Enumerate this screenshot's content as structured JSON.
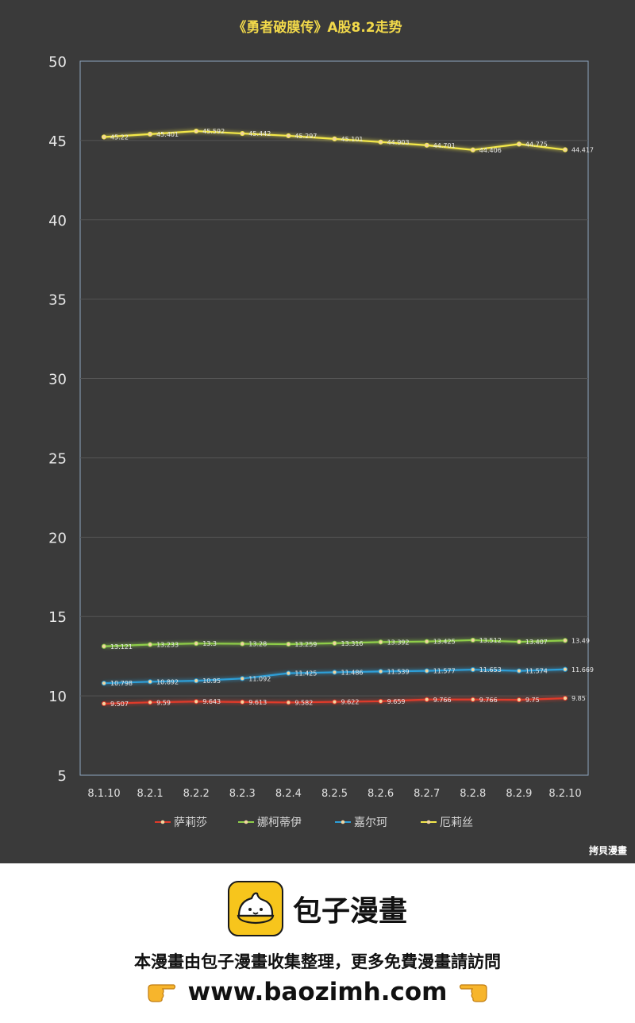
{
  "chart_data": {
    "type": "line",
    "title": "《勇者破膜传》A股8.2走势",
    "categories": [
      "8.1.10",
      "8.2.1",
      "8.2.2",
      "8.2.3",
      "8.2.4",
      "8.2.5",
      "8.2.6",
      "8.2.7",
      "8.2.8",
      "8.2.9",
      "8.2.10"
    ],
    "ylim": [
      5,
      50
    ],
    "yticks": [
      5,
      10,
      15,
      20,
      25,
      30,
      35,
      40,
      45,
      50
    ],
    "grid": true,
    "legend_position": "bottom",
    "series": [
      {
        "name": "萨莉莎",
        "color": "#e03a2a",
        "values": [
          9.507,
          9.59,
          9.643,
          9.613,
          9.582,
          9.622,
          9.659,
          9.766,
          9.766,
          9.75,
          9.85
        ]
      },
      {
        "name": "娜柯蒂伊",
        "color": "#8fce4a",
        "values": [
          13.121,
          13.233,
          13.3,
          13.28,
          13.259,
          13.316,
          13.392,
          13.425,
          13.512,
          13.407,
          13.49
        ]
      },
      {
        "name": "嘉尔珂",
        "color": "#2d9fd8",
        "values": [
          10.798,
          10.892,
          10.95,
          11.092,
          11.425,
          11.486,
          11.539,
          11.577,
          11.653,
          11.574,
          11.669
        ]
      },
      {
        "name": "厄莉丝",
        "color": "#f3e84a",
        "values": [
          45.22,
          45.401,
          45.592,
          45.442,
          45.297,
          45.101,
          44.903,
          44.701,
          44.406,
          44.775,
          44.417
        ]
      }
    ],
    "data_labels": {
      "萨莉莎": [
        "9.507",
        "9.59",
        "9.643",
        "9.613",
        "9.582",
        "9.622",
        "9.659",
        "9.766",
        "9.766",
        "9.75",
        "9.85"
      ],
      "娜柯蒂伊": [
        "13.121",
        "13.233",
        "13.3",
        "13.28",
        "13.259",
        "13.316",
        "13.392",
        "13.425",
        "13.512",
        "13.407",
        "13.49"
      ],
      "嘉尔珂": [
        "10.798",
        "10.892",
        "10.95",
        "11.092",
        "11.425",
        "11.486",
        "11.539",
        "11.577",
        "11.653",
        "11.574",
        "11.669"
      ],
      "厄莉丝": [
        "45.22",
        "45.401",
        "45.592",
        "45.442",
        "45.297",
        "45.101",
        "44.903",
        "44.701",
        "44.406",
        "44.775",
        "44.417"
      ]
    }
  },
  "watermark": "拷貝漫畫",
  "footer": {
    "brand_name": "包子漫畫",
    "line": "本漫畫由包子漫畫收集整理，更多免費漫畫請訪問",
    "url": "www.baozimh.com"
  }
}
